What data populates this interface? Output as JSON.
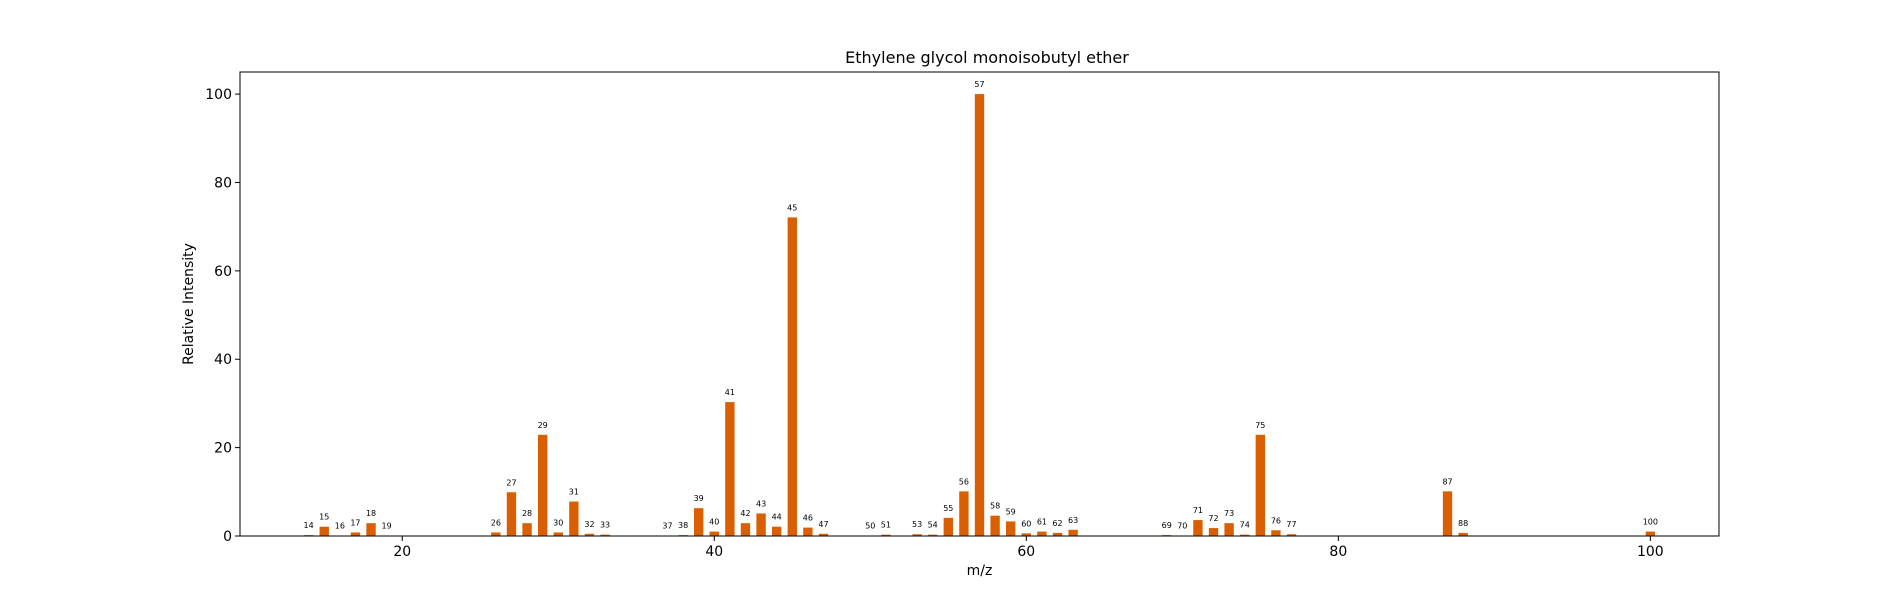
{
  "chart_data": {
    "type": "bar",
    "title": "Ethylene glycol monoisobutyl ether",
    "xlabel": "m/z",
    "ylabel": "Relative Intensity",
    "xlim": [
      9.6,
      104.4
    ],
    "ylim": [
      0,
      105
    ],
    "xticks": [
      20,
      40,
      60,
      80,
      100
    ],
    "yticks": [
      0,
      20,
      40,
      60,
      80,
      100
    ],
    "grid": false,
    "bar_color": "#d95f02",
    "x": [
      14,
      15,
      16,
      17,
      18,
      19,
      26,
      27,
      28,
      29,
      30,
      31,
      32,
      33,
      37,
      38,
      39,
      40,
      41,
      42,
      43,
      44,
      45,
      46,
      47,
      50,
      51,
      53,
      54,
      55,
      56,
      57,
      58,
      59,
      60,
      61,
      62,
      63,
      69,
      70,
      71,
      72,
      73,
      74,
      75,
      76,
      77,
      87,
      88,
      100
    ],
    "values": [
      0.2,
      2.1,
      0.1,
      0.8,
      2.9,
      0.1,
      0.8,
      9.9,
      2.9,
      22.9,
      0.8,
      7.8,
      0.5,
      0.3,
      0.1,
      0.2,
      6.3,
      1.0,
      30.3,
      2.9,
      5.1,
      2.1,
      72.1,
      1.9,
      0.5,
      0.1,
      0.3,
      0.4,
      0.3,
      4.1,
      10.1,
      100,
      4.6,
      3.3,
      0.6,
      1.0,
      0.7,
      1.4,
      0.2,
      0.1,
      3.6,
      1.8,
      2.9,
      0.3,
      22.9,
      1.3,
      0.4,
      10.1,
      0.7,
      1.0
    ],
    "labels": [
      "14",
      "15",
      "16",
      "17",
      "18",
      "19",
      "26",
      "27",
      "28",
      "29",
      "30",
      "31",
      "32",
      "33",
      "37",
      "38",
      "39",
      "40",
      "41",
      "42",
      "43",
      "44",
      "45",
      "46",
      "47",
      "50",
      "51",
      "53",
      "54",
      "55",
      "56",
      "57",
      "58",
      "59",
      "60",
      "61",
      "62",
      "63",
      "69",
      "70",
      "71",
      "72",
      "73",
      "74",
      "75",
      "76",
      "77",
      "87",
      "88",
      "100"
    ]
  }
}
